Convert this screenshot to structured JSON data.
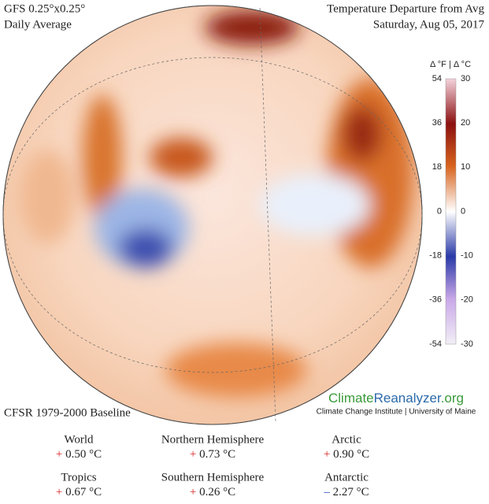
{
  "header": {
    "model": "GFS 0.25°x0.25°",
    "period": "Daily Average",
    "title": "Temperature Departure from Avg",
    "date": "Saturday, Aug 05, 2017"
  },
  "colorbar": {
    "units": "Δ °F | Δ °C",
    "fahrenheit_ticks": [
      "54",
      "36",
      "18",
      "0",
      "-18",
      "-36",
      "-54"
    ],
    "celsius_ticks": [
      "30",
      "20",
      "10",
      "0",
      "-10",
      "-20",
      "-30"
    ]
  },
  "baseline": "CFSR 1979-2000 Baseline",
  "logo": {
    "part1": "Climate",
    "part2": "Reanalyzer",
    "part3": ".org",
    "affiliation": "Climate Change Institute | University of Maine"
  },
  "stats": [
    {
      "region": "World",
      "sign": "+",
      "value": "0.50 °C",
      "color": "#d62020"
    },
    {
      "region": "Northern Hemisphere",
      "sign": "+",
      "value": "0.73 °C",
      "color": "#d62020"
    },
    {
      "region": "Arctic",
      "sign": "+",
      "value": "0.90 °C",
      "color": "#d62020"
    },
    {
      "region": "Tropics",
      "sign": "+",
      "value": "0.67 °C",
      "color": "#d62020"
    },
    {
      "region": "Southern Hemisphere",
      "sign": "+",
      "value": "0.26 °C",
      "color": "#d62020"
    },
    {
      "region": "Antarctic",
      "sign": "–",
      "value": "2.27 °C",
      "color": "#2040c0"
    }
  ]
}
